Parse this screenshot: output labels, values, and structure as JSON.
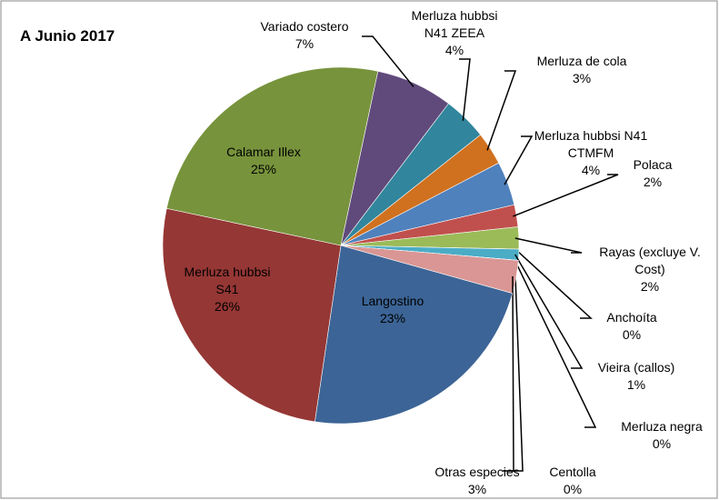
{
  "chart_data": {
    "type": "pie",
    "title": "A Junio 2017",
    "categories": [
      "Variado costero",
      "Merluza hubbsi N41 ZEEA",
      "Merluza de cola",
      "Merluza hubbsi N41 CTMFM",
      "Polaca",
      "Rayas (excluye V. Cost)",
      "Anchoíta",
      "Vieira (callos)",
      "Merluza negra",
      "Centolla",
      "Otras especies",
      "Langostino",
      "Merluza hubbsi S41",
      "Calamar Illex"
    ],
    "values": [
      7,
      4,
      3,
      4,
      2,
      2,
      0,
      1,
      0,
      0,
      3,
      23,
      26,
      25
    ],
    "value_labels": [
      "7%",
      "4%",
      "3%",
      "4%",
      "2%",
      "2%",
      "0%",
      "1%",
      "0%",
      "0%",
      "3%",
      "23%",
      "26%",
      "25%"
    ],
    "colors": [
      "#604a7b",
      "#31859c",
      "#d0711f",
      "#4f81bd",
      "#c0504d",
      "#9bbb59",
      "#8064a2",
      "#4bacc6",
      "#f79646",
      "#2c4d75",
      "#d99694",
      "#3c6496",
      "#953735",
      "#77933c"
    ]
  }
}
